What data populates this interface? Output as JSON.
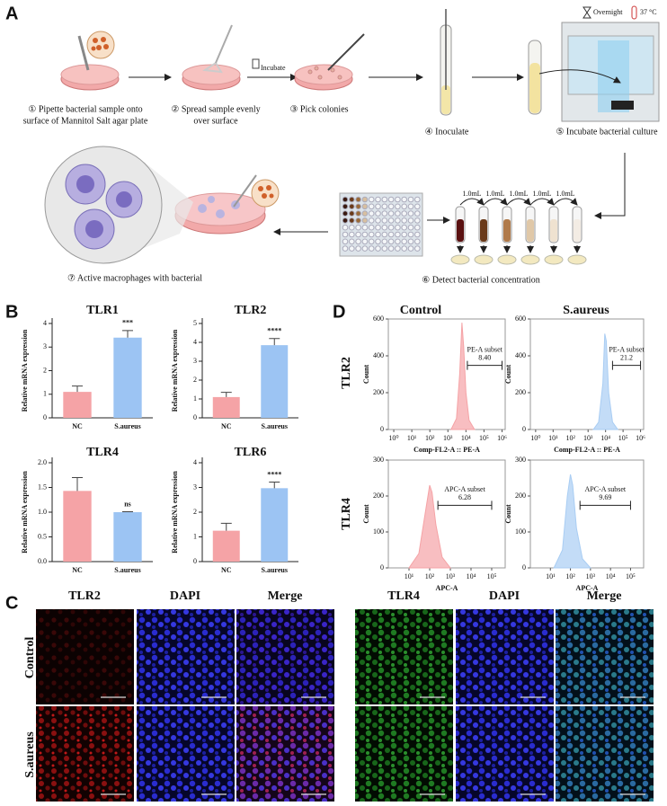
{
  "panel_labels": [
    "A",
    "B",
    "C",
    "D"
  ],
  "workflow": {
    "steps": [
      [
        "① Pipette bacterial sample onto",
        "surface of Mannitol Salt agar plate"
      ],
      [
        "② Spread sample evenly",
        "over surface"
      ],
      [
        "③ Pick colonies"
      ],
      [
        "④ Inoculate"
      ],
      [
        "⑤ Incubate bacterial culture"
      ],
      [
        "⑥ Detect bacterial concentration"
      ],
      [
        "⑦ Active macrophages with bacterial"
      ]
    ],
    "incubate": "Incubate",
    "overnight": "Overnight",
    "temperature": "37 °C",
    "volumes": [
      "1.0mL",
      "1.0mL",
      "1.0mL",
      "1.0mL",
      "1.0mL"
    ]
  },
  "chart_data": [
    {
      "type": "bar",
      "title": "TLR1",
      "ylabel": "Relative mRNA expression",
      "categories": [
        "NC",
        "S.aureus"
      ],
      "values": [
        1.1,
        3.4
      ],
      "errors": [
        0.25,
        0.3
      ],
      "colors": [
        "#f5a3a6",
        "#9cc4f3"
      ],
      "significance": "***",
      "ylim": [
        0,
        4
      ],
      "yticks": [
        0,
        1,
        2,
        3,
        4
      ]
    },
    {
      "type": "bar",
      "title": "TLR2",
      "ylabel": "Relative mRNA expression",
      "categories": [
        "NC",
        "S.aureus"
      ],
      "values": [
        1.1,
        3.85
      ],
      "errors": [
        0.25,
        0.35
      ],
      "colors": [
        "#f5a3a6",
        "#9cc4f3"
      ],
      "significance": "****",
      "ylim": [
        0,
        5
      ],
      "yticks": [
        0,
        1,
        2,
        3,
        4,
        5
      ]
    },
    {
      "type": "bar",
      "title": "TLR4",
      "ylabel": "Relative mRNA expression",
      "categories": [
        "NC",
        "S.aureus"
      ],
      "values": [
        1.43,
        1.0
      ],
      "errors": [
        0.27,
        0.01
      ],
      "colors": [
        "#f5a3a6",
        "#9cc4f3"
      ],
      "significance": "ns",
      "ylim": [
        0,
        2
      ],
      "yticks": [
        {
          "value": 0,
          "label": "0.0"
        },
        {
          "value": 0.5,
          "label": "0.5"
        },
        {
          "value": 1,
          "label": "1.0"
        },
        {
          "value": 1.5,
          "label": "1.5"
        },
        {
          "value": 2,
          "label": "2.0"
        }
      ]
    },
    {
      "type": "bar",
      "title": "TLR6",
      "ylabel": "Relative mRNA expression",
      "categories": [
        "NC",
        "S.aureus"
      ],
      "values": [
        1.25,
        2.97
      ],
      "errors": [
        0.3,
        0.25
      ],
      "colors": [
        "#f5a3a6",
        "#9cc4f3"
      ],
      "significance": "****",
      "ylim": [
        0,
        4
      ],
      "yticks": [
        0,
        1,
        2,
        3,
        4
      ]
    },
    {
      "type": "area",
      "xlabel": "Comp-FL2-A :: PE-A",
      "ylabel": "Count",
      "log_x": true,
      "color": "#f5a3a6",
      "x": [
        1500,
        3000,
        4500,
        6000,
        7500,
        10000,
        15000,
        30000
      ],
      "values": [
        0,
        60,
        300,
        580,
        450,
        200,
        50,
        0
      ],
      "xlim": [
        0.5,
        1500000
      ],
      "xticks": [
        {
          "value": 1,
          "label": "10⁰"
        },
        {
          "value": 10,
          "label": "10¹"
        },
        {
          "value": 100,
          "label": "10²"
        },
        {
          "value": 1000,
          "label": "10³"
        },
        {
          "value": 10000,
          "label": "10⁴"
        },
        {
          "value": 100000,
          "label": "10⁵"
        },
        {
          "value": 1000000,
          "label": "10⁶"
        }
      ],
      "ylim": [
        0,
        600
      ],
      "yticks": [
        0,
        200,
        400,
        600
      ],
      "gate": {
        "name": "PE-A subset",
        "value": "8.40",
        "range": [
          12000,
          1000000
        ]
      }
    },
    {
      "type": "area",
      "xlabel": "Comp-FL2-A :: PE-A",
      "ylabel": "Count",
      "log_x": true,
      "color": "#a9cdf3",
      "x": [
        2000,
        4000,
        7000,
        9000,
        11000,
        15000,
        25000,
        50000
      ],
      "values": [
        0,
        40,
        250,
        520,
        480,
        200,
        40,
        0
      ],
      "xlim": [
        0.5,
        1500000
      ],
      "xticks": [
        {
          "value": 1,
          "label": "10⁰"
        },
        {
          "value": 10,
          "label": "10¹"
        },
        {
          "value": 100,
          "label": "10²"
        },
        {
          "value": 1000,
          "label": "10³"
        },
        {
          "value": 10000,
          "label": "10⁴"
        },
        {
          "value": 100000,
          "label": "10⁵"
        },
        {
          "value": 1000000,
          "label": "10⁶"
        }
      ],
      "ylim": [
        0,
        600
      ],
      "yticks": [
        0,
        200,
        400,
        600
      ],
      "gate": {
        "name": "PE-A subset",
        "value": "21.2",
        "range": [
          25000,
          1000000
        ]
      }
    },
    {
      "type": "area",
      "xlabel": "APC-A",
      "ylabel": "Count",
      "log_x": true,
      "color": "#f5a3a6",
      "x": [
        10,
        30,
        60,
        100,
        130,
        200,
        400,
        1000
      ],
      "values": [
        0,
        40,
        150,
        230,
        210,
        120,
        30,
        0
      ],
      "xlim": [
        1,
        450000
      ],
      "xticks": [
        {
          "value": 10,
          "label": "10¹"
        },
        {
          "value": 100,
          "label": "10²"
        },
        {
          "value": 1000,
          "label": "10³"
        },
        {
          "value": 10000,
          "label": "10⁴"
        },
        {
          "value": 100000,
          "label": "10⁵"
        }
      ],
      "ylim": [
        0,
        300
      ],
      "yticks": [
        0,
        100,
        200,
        300
      ],
      "gate": {
        "name": "APC-A subset",
        "value": "6.28",
        "range": [
          250,
          100000
        ]
      }
    },
    {
      "type": "area",
      "xlabel": "APC-A",
      "ylabel": "Count",
      "log_x": true,
      "color": "#a9cdf3",
      "x": [
        15,
        40,
        70,
        100,
        130,
        200,
        400,
        1000
      ],
      "values": [
        0,
        50,
        200,
        260,
        230,
        110,
        25,
        0
      ],
      "xlim": [
        1,
        450000
      ],
      "xticks": [
        {
          "value": 10,
          "label": "10¹"
        },
        {
          "value": 100,
          "label": "10²"
        },
        {
          "value": 1000,
          "label": "10³"
        },
        {
          "value": 10000,
          "label": "10⁴"
        },
        {
          "value": 100000,
          "label": "10⁵"
        }
      ],
      "ylim": [
        0,
        300
      ],
      "yticks": [
        0,
        100,
        200,
        300
      ],
      "gate": {
        "name": "APC-A subset",
        "value": "9.69",
        "range": [
          300,
          100000
        ]
      }
    }
  ],
  "flow_headers": {
    "columns": [
      "Control",
      "S.aureus"
    ],
    "rows": [
      "TLR2",
      "TLR4"
    ]
  },
  "microscopy": {
    "columns": [
      "TLR2",
      "DAPI",
      "Merge",
      "TLR4",
      "DAPI",
      "Merge"
    ],
    "rows": [
      "Control",
      "S.aureus"
    ]
  }
}
